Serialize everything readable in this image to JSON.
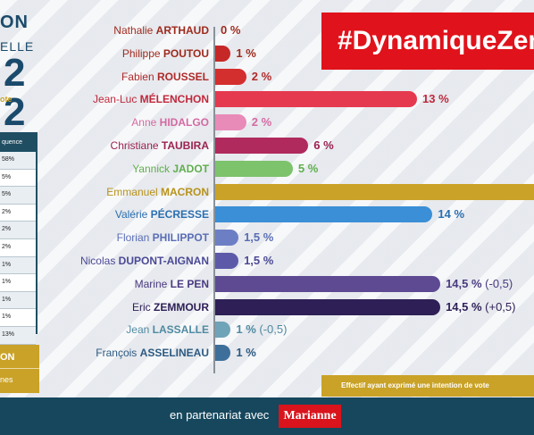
{
  "hashtag": "#DynamiqueZem",
  "left_panel": {
    "title_line1": "ON",
    "title_line2": "ELLE",
    "title_year": "2 2",
    "subtitle": "ote",
    "table_header": "quence",
    "table_rows": [
      "58%",
      "5%",
      "5%",
      "2%",
      "2%",
      "2%",
      "1%",
      "1%",
      "1%",
      "1%",
      "13%"
    ],
    "bottom_line1": "ON",
    "bottom_line2": "nes"
  },
  "note": "Effectif ayant exprimé une intention de vote",
  "footer": {
    "partner_text": "en partenariat avec",
    "logo": "Marianne"
  },
  "chart_data": {
    "type": "bar",
    "orientation": "horizontal",
    "xlim": [
      0,
      15.5
    ],
    "categories": [
      {
        "first": "Nathalie",
        "last": "ARTHAUD",
        "value": 0,
        "label": "0 %",
        "color": "#c0392b",
        "name_color": "#9e2a1e"
      },
      {
        "first": "Philippe",
        "last": "POUTOU",
        "value": 1,
        "label": "1 %",
        "color": "#c62828",
        "name_color": "#9e2a1e"
      },
      {
        "first": "Fabien",
        "last": "ROUSSEL",
        "value": 2,
        "label": "2 %",
        "color": "#d32f2f",
        "name_color": "#b02a2a"
      },
      {
        "first": "Jean-Luc",
        "last": "MÉLENCHON",
        "value": 13,
        "label": "13 %",
        "color": "#e53950",
        "name_color": "#c0283c"
      },
      {
        "first": "Anne",
        "last": "HIDALGO",
        "value": 2,
        "label": "2 %",
        "color": "#e88bb8",
        "name_color": "#d46aa3"
      },
      {
        "first": "Christiane",
        "last": "TAUBIRA",
        "value": 6,
        "label": "6 %",
        "color": "#b02a5e",
        "name_color": "#9b2350"
      },
      {
        "first": "Yannick",
        "last": "JADOT",
        "value": 5,
        "label": "5 %",
        "color": "#7cc36c",
        "name_color": "#5fae4d"
      },
      {
        "first": "Emmanuel",
        "last": "MACRON",
        "value": 26,
        "label": "",
        "color": "#c9a227",
        "name_color": "#b8921a"
      },
      {
        "first": "Valérie",
        "last": "PÉCRESSE",
        "value": 14,
        "label": "14 %",
        "color": "#3a8fd6",
        "name_color": "#2a6fb0"
      },
      {
        "first": "Florian",
        "last": "PHILIPPOT",
        "value": 1.5,
        "label": "1,5 %",
        "color": "#6d7fc4",
        "name_color": "#5a6db5"
      },
      {
        "first": "Nicolas",
        "last": "DUPONT-AIGNAN",
        "value": 1.5,
        "label": "1,5 %",
        "color": "#5c5aa8",
        "name_color": "#4b4996"
      },
      {
        "first": "Marine",
        "last": "LE PEN",
        "value": 14.5,
        "label": "14,5 %",
        "extra": "(-0,5)",
        "color": "#5d4a93",
        "name_color": "#4a3a80"
      },
      {
        "first": "Eric",
        "last": "ZEMMOUR",
        "value": 14.5,
        "label": "14,5 %",
        "extra": "(+0,5)",
        "color": "#2e1f56",
        "name_color": "#2e1f56"
      },
      {
        "first": "Jean",
        "last": "LASSALLE",
        "value": 1,
        "label": "1 %",
        "extra": "(-0,5)",
        "color": "#6fa3b8",
        "name_color": "#4f8aa2"
      },
      {
        "first": "François",
        "last": "ASSELINEAU",
        "value": 1,
        "label": "1 %",
        "color": "#3d6f9a",
        "name_color": "#2c5a82"
      }
    ]
  }
}
